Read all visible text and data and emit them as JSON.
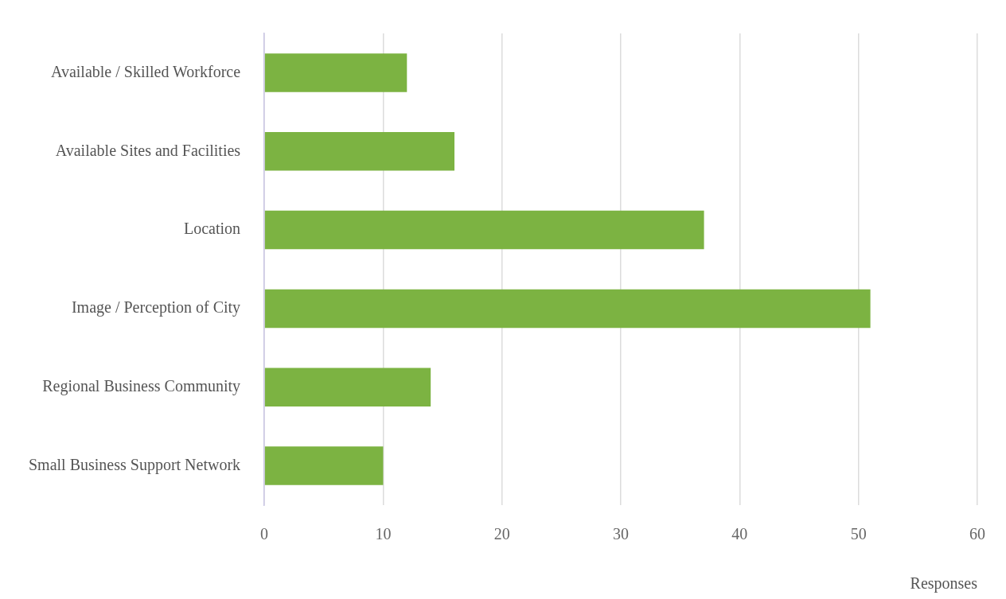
{
  "chart_data": {
    "type": "bar",
    "orientation": "horizontal",
    "xlabel": "Responses",
    "categories": [
      "Available / Skilled Workforce",
      "Available Sites and Facilities",
      "Location",
      "Image / Perception of City",
      "Regional Business Community",
      "Small Business Support Network"
    ],
    "values": [
      12,
      16,
      37,
      51,
      14,
      10
    ],
    "color": "#7cb342",
    "xlim": [
      0,
      60
    ],
    "xticks": [
      0,
      10,
      20,
      30,
      40,
      50,
      60
    ],
    "grid": "x",
    "legend": false
  }
}
